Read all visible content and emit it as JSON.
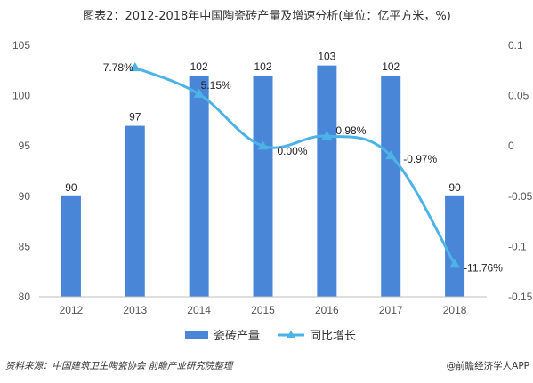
{
  "title": "图表2：2012-2018年中国陶瓷砖产量及增速分析(单位：亿平方米，%)",
  "footer": {
    "source": "资料来源：中国建筑卫生陶瓷协会 前瞻产业研究院整理",
    "brand": "@前瞻经济学人APP"
  },
  "colors": {
    "bar": "#4a86d8",
    "line": "#4db3e6",
    "grid": "#e6e6e6",
    "axis": "#bfbfbf"
  },
  "chart_data": {
    "type": "bar+line",
    "categories": [
      "2012",
      "2013",
      "2014",
      "2015",
      "2016",
      "2017",
      "2018"
    ],
    "series": [
      {
        "name": "瓷砖产量",
        "type": "bar",
        "axis": "left",
        "values": [
          90,
          97,
          102,
          102,
          103,
          102,
          90
        ],
        "labels": [
          "90",
          "97",
          "102",
          "102",
          "103",
          "102",
          "90"
        ]
      },
      {
        "name": "同比增长",
        "type": "line",
        "axis": "right",
        "values": [
          null,
          0.0778,
          0.0515,
          0.0,
          0.0098,
          -0.0097,
          -0.1176
        ],
        "labels": [
          "",
          "7.78%",
          "5.15%",
          "0.00%",
          "0.98%",
          "-0.97%",
          "-11.76%"
        ]
      }
    ],
    "y_left": {
      "min": 80,
      "max": 105,
      "ticks": [
        "80",
        "85",
        "90",
        "95",
        "100",
        "105"
      ]
    },
    "y_right": {
      "min": -0.15,
      "max": 0.1,
      "ticks": [
        "-0.15",
        "-0.1",
        "-0.05",
        "0",
        "0.05",
        "0.1"
      ]
    },
    "legend_position": "bottom-center",
    "grid": false
  }
}
